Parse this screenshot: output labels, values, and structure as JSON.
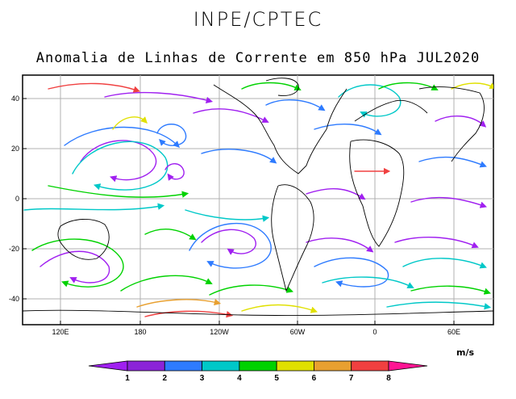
{
  "header": {
    "org": "INPE/CPTEC"
  },
  "title": "Anomalia de Linhas de Corrente em 850 hPa JUL2020",
  "axes": {
    "y_ticks": [
      "40",
      "20",
      "0",
      "-20",
      "-40"
    ],
    "x_ticks": [
      "120E",
      "180",
      "120W",
      "60W",
      "0",
      "60E"
    ]
  },
  "colorbar": {
    "units": "m/s",
    "labels": [
      "1",
      "2",
      "3",
      "4",
      "5",
      "6",
      "7",
      "8"
    ],
    "colors": [
      "#a020f0",
      "#8b24d8",
      "#2e7bff",
      "#00c8c8",
      "#00d200",
      "#e0e000",
      "#e8a030",
      "#f04040",
      "#ff1493"
    ]
  },
  "map": {
    "projection": "cylindrical",
    "lon_range": "100E to 90E (wrapped)",
    "lat_range": "-50 to 50"
  }
}
